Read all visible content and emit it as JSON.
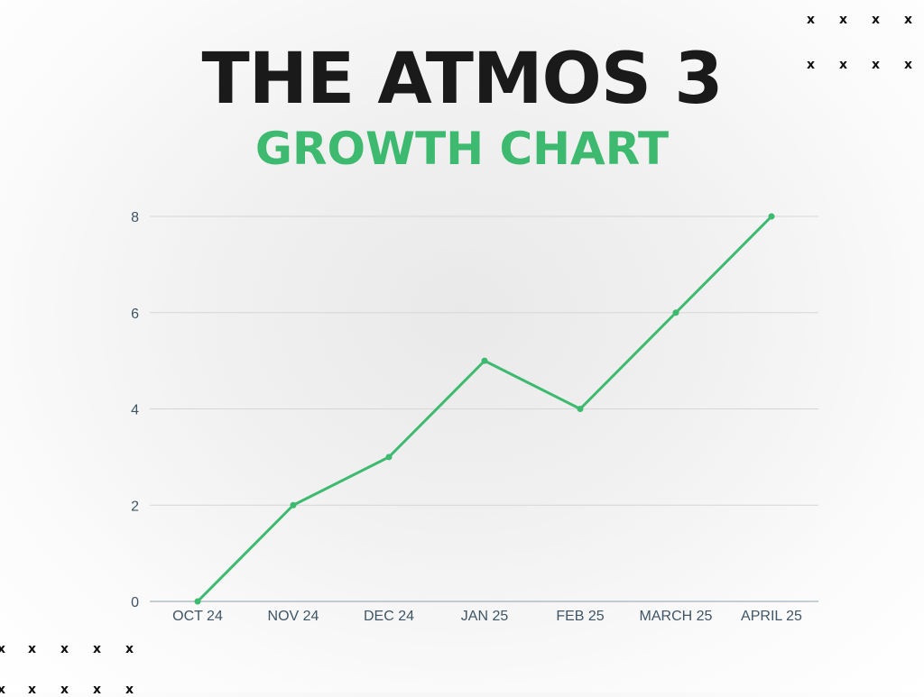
{
  "title": "THE ATMOS 3",
  "subtitle": "GROWTH CHART",
  "colors": {
    "title": "#1a1a1a",
    "accent": "#3dba6f",
    "axis_text": "#3e5566",
    "grid": "#d6d6d6",
    "axis_line": "#8ea0ab"
  },
  "decorations": {
    "mark": "x"
  },
  "chart_data": {
    "type": "line",
    "title": "THE ATMOS 3 GROWTH CHART",
    "xlabel": "",
    "ylabel": "",
    "categories": [
      "OCT 24",
      "NOV 24",
      "DEC 24",
      "JAN 25",
      "FEB 25",
      "MARCH 25",
      "APRIL 25"
    ],
    "series": [
      {
        "values": [
          0,
          2,
          3,
          5,
          4,
          6,
          8
        ]
      }
    ],
    "ylim": [
      0,
      8
    ],
    "yticks": [
      0,
      2,
      4,
      6,
      8
    ],
    "grid": true,
    "legend": "none"
  }
}
